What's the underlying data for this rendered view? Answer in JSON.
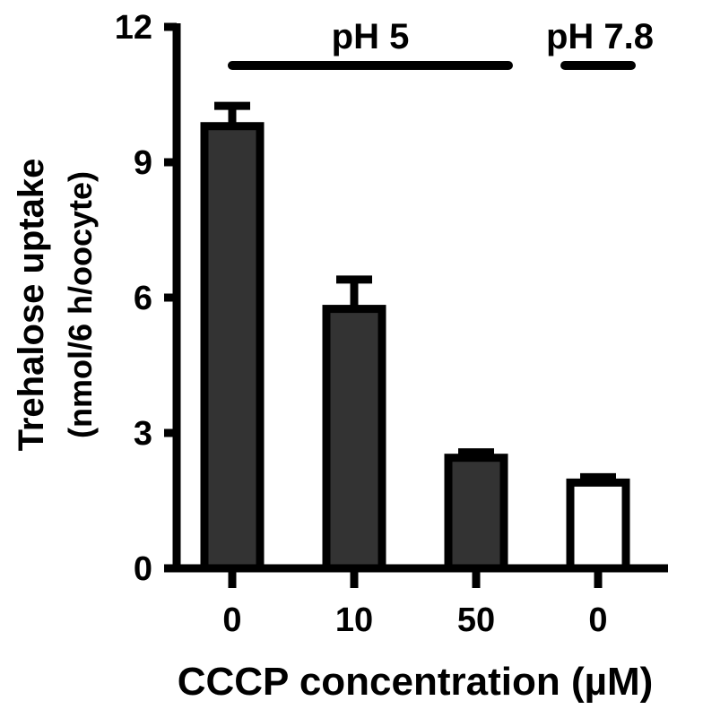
{
  "chart_data": {
    "type": "bar",
    "categories": [
      "0",
      "10",
      "50",
      "0"
    ],
    "values": [
      9.8,
      5.75,
      2.45,
      1.9
    ],
    "errors": [
      0.45,
      0.65,
      0.12,
      0.12
    ],
    "bar_fills": [
      "#333333",
      "#333333",
      "#333333",
      "#ffffff"
    ],
    "title": "",
    "xlabel": "CCCP concentration (µM)",
    "ylabel_line1": "Trehalose uptake",
    "ylabel_line2": "(nmol/6 h/oocyte)",
    "ylim": [
      0,
      12
    ],
    "yticks": [
      0,
      3,
      6,
      9,
      12
    ],
    "grid": false,
    "legend": "none",
    "groups": [
      {
        "label": "pH 5",
        "from_category": 0,
        "to_category": 2
      },
      {
        "label": "pH 7.8",
        "from_category": 3,
        "to_category": 3
      }
    ]
  }
}
